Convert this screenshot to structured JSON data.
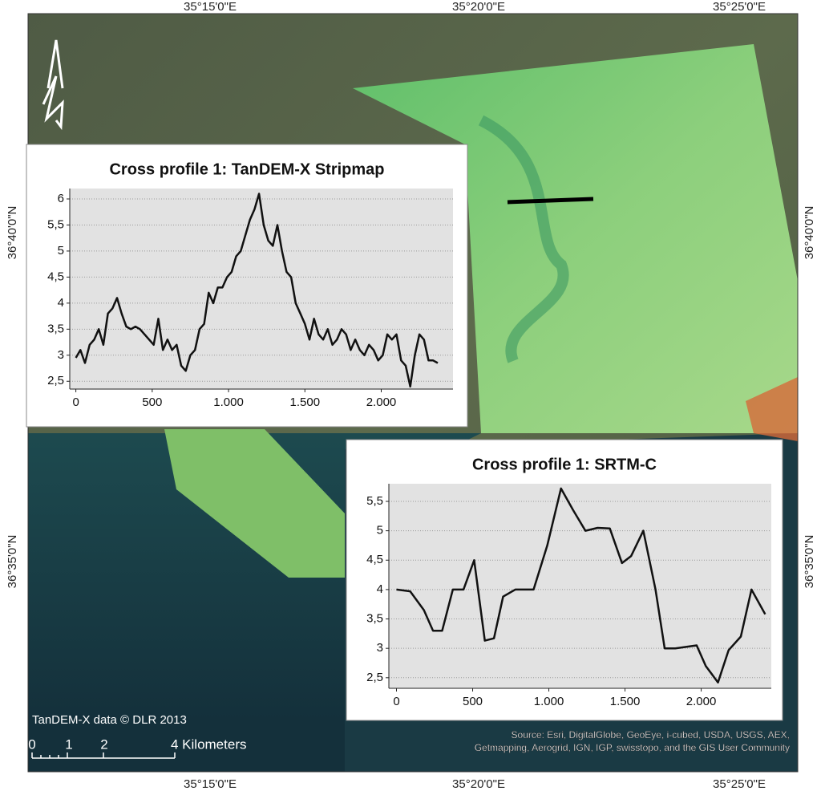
{
  "map": {
    "lon_labels": [
      "35°15'0\"E",
      "35°20'0\"E",
      "35°25'0\"E"
    ],
    "lat_labels": [
      "36°40'0\"N",
      "36°35'0\"N"
    ],
    "data_credit": "TanDEM-X data © DLR 2013",
    "scale_labels": [
      "0",
      "1",
      "2",
      "4 Kilometers"
    ],
    "source_lines": [
      "Source: Esri, DigitalGlobe, GeoEye, i-cubed, USDA, USGS, AEX,",
      "Getmapping, Aerogrid, IGN, IGP, swisstopo, and the GIS User Community"
    ]
  },
  "chart_data": [
    {
      "type": "line",
      "title": "Cross profile 1: TanDEM-X Stripmap",
      "x": [
        0,
        30,
        60,
        90,
        120,
        150,
        180,
        210,
        240,
        270,
        300,
        330,
        360,
        390,
        420,
        450,
        480,
        510,
        540,
        570,
        600,
        630,
        660,
        690,
        720,
        750,
        780,
        810,
        840,
        870,
        900,
        930,
        960,
        990,
        1020,
        1050,
        1080,
        1110,
        1140,
        1170,
        1200,
        1230,
        1260,
        1290,
        1320,
        1350,
        1380,
        1410,
        1440,
        1470,
        1500,
        1530,
        1560,
        1590,
        1620,
        1650,
        1680,
        1710,
        1740,
        1770,
        1800,
        1830,
        1860,
        1890,
        1920,
        1950,
        1980,
        2010,
        2040,
        2070,
        2100,
        2130,
        2160,
        2190,
        2220,
        2250,
        2280,
        2310,
        2340,
        2370
      ],
      "series": [
        {
          "color": "#111111",
          "values": [
            2.95,
            3.1,
            2.85,
            3.2,
            3.3,
            3.5,
            3.2,
            3.8,
            3.9,
            4.1,
            3.8,
            3.55,
            3.5,
            3.55,
            3.5,
            3.4,
            3.3,
            3.2,
            3.7,
            3.1,
            3.3,
            3.1,
            3.2,
            2.8,
            2.7,
            3.0,
            3.1,
            3.5,
            3.6,
            4.2,
            4.0,
            4.3,
            4.3,
            4.5,
            4.6,
            4.9,
            5.0,
            5.3,
            5.6,
            5.8,
            6.1,
            5.5,
            5.2,
            5.1,
            5.5,
            5.0,
            4.6,
            4.5,
            4.0,
            3.8,
            3.6,
            3.3,
            3.7,
            3.4,
            3.3,
            3.5,
            3.2,
            3.3,
            3.5,
            3.4,
            3.1,
            3.3,
            3.1,
            3.0,
            3.2,
            3.1,
            2.9,
            3.0,
            3.4,
            3.3,
            3.4,
            2.9,
            2.8,
            2.4,
            3.0,
            3.4,
            3.3,
            2.9,
            2.9,
            2.85
          ]
        }
      ],
      "xlim": [
        -40,
        2470
      ],
      "xticks": [
        0,
        500,
        {
          "value": 1000,
          "label": "1.000"
        },
        {
          "value": 1500,
          "label": "1.500"
        },
        {
          "value": 2000,
          "label": "2.000"
        }
      ],
      "ylim": [
        2.35,
        6.2
      ],
      "yticks": [
        {
          "value": 2.5,
          "label": "2,5"
        },
        3,
        {
          "value": 3.5,
          "label": "3,5"
        },
        4,
        {
          "value": 4.5,
          "label": "4,5"
        },
        5,
        {
          "value": 5.5,
          "label": "5,5"
        },
        6
      ],
      "grid": true
    },
    {
      "type": "line",
      "title": "Cross profile 1: SRTM-C",
      "x": [
        0,
        90,
        180,
        240,
        300,
        370,
        440,
        510,
        580,
        640,
        700,
        780,
        900,
        990,
        1080,
        1160,
        1240,
        1320,
        1400,
        1480,
        1540,
        1620,
        1700,
        1760,
        1830,
        1970,
        2030,
        2110,
        2180,
        2260,
        2330,
        2420
      ],
      "series": [
        {
          "color": "#111111",
          "values": [
            4.0,
            3.97,
            3.65,
            3.3,
            3.3,
            4.0,
            4.0,
            4.5,
            3.13,
            3.17,
            3.88,
            4.0,
            4.0,
            4.75,
            5.72,
            5.35,
            5.0,
            5.05,
            5.04,
            4.45,
            4.57,
            5.0,
            4.0,
            3.0,
            3.0,
            3.05,
            2.7,
            2.42,
            2.97,
            3.2,
            4.0,
            3.58
          ]
        }
      ],
      "xlim": [
        -50,
        2460
      ],
      "xticks": [
        0,
        500,
        {
          "value": 1000,
          "label": "1.000"
        },
        {
          "value": 1500,
          "label": "1.500"
        },
        {
          "value": 2000,
          "label": "2.000"
        }
      ],
      "ylim": [
        2.32,
        5.8
      ],
      "yticks": [
        {
          "value": 2.5,
          "label": "2,5"
        },
        3,
        {
          "value": 3.5,
          "label": "3,5"
        },
        4,
        {
          "value": 4.5,
          "label": "4,5"
        },
        5,
        {
          "value": 5.5,
          "label": "5,5"
        }
      ],
      "grid": true
    }
  ]
}
